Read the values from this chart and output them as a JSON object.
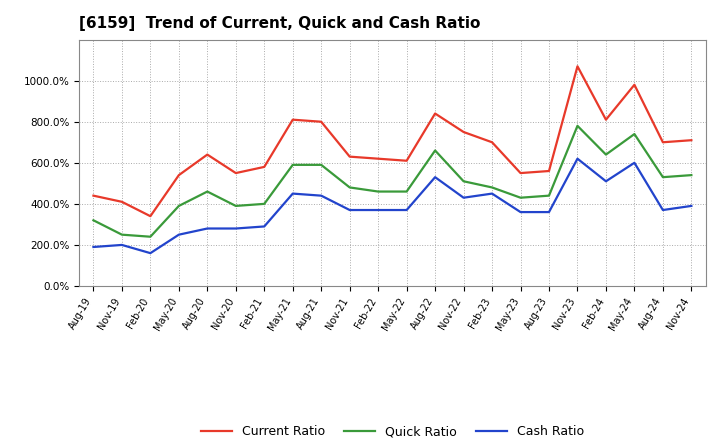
{
  "title": "[6159]  Trend of Current, Quick and Cash Ratio",
  "x_labels": [
    "Aug-19",
    "Nov-19",
    "Feb-20",
    "May-20",
    "Aug-20",
    "Nov-20",
    "Feb-21",
    "May-21",
    "Aug-21",
    "Nov-21",
    "Feb-22",
    "May-22",
    "Aug-22",
    "Nov-22",
    "Feb-23",
    "May-23",
    "Aug-23",
    "Nov-23",
    "Feb-24",
    "May-24",
    "Aug-24",
    "Nov-24"
  ],
  "current_ratio": [
    440,
    410,
    340,
    540,
    640,
    550,
    580,
    810,
    800,
    630,
    620,
    610,
    840,
    750,
    700,
    550,
    560,
    1070,
    810,
    980,
    700,
    710
  ],
  "quick_ratio": [
    320,
    250,
    240,
    390,
    460,
    390,
    400,
    590,
    590,
    480,
    460,
    460,
    660,
    510,
    480,
    430,
    440,
    780,
    640,
    740,
    530,
    540
  ],
  "cash_ratio": [
    190,
    200,
    160,
    250,
    280,
    280,
    290,
    450,
    440,
    370,
    370,
    370,
    530,
    430,
    450,
    360,
    360,
    620,
    510,
    600,
    370,
    390
  ],
  "current_color": "#e8392a",
  "quick_color": "#3a9a3a",
  "cash_color": "#2244cc",
  "bg_color": "#ffffff",
  "plot_bg_color": "#ffffff",
  "grid_color": "#aaaaaa",
  "ylim": [
    0,
    1200
  ],
  "yticks": [
    0,
    200,
    400,
    600,
    800,
    1000
  ],
  "ytick_labels": [
    "0.0%",
    "200.0%",
    "400.0%",
    "600.0%",
    "800.0%",
    "1000.0%"
  ]
}
